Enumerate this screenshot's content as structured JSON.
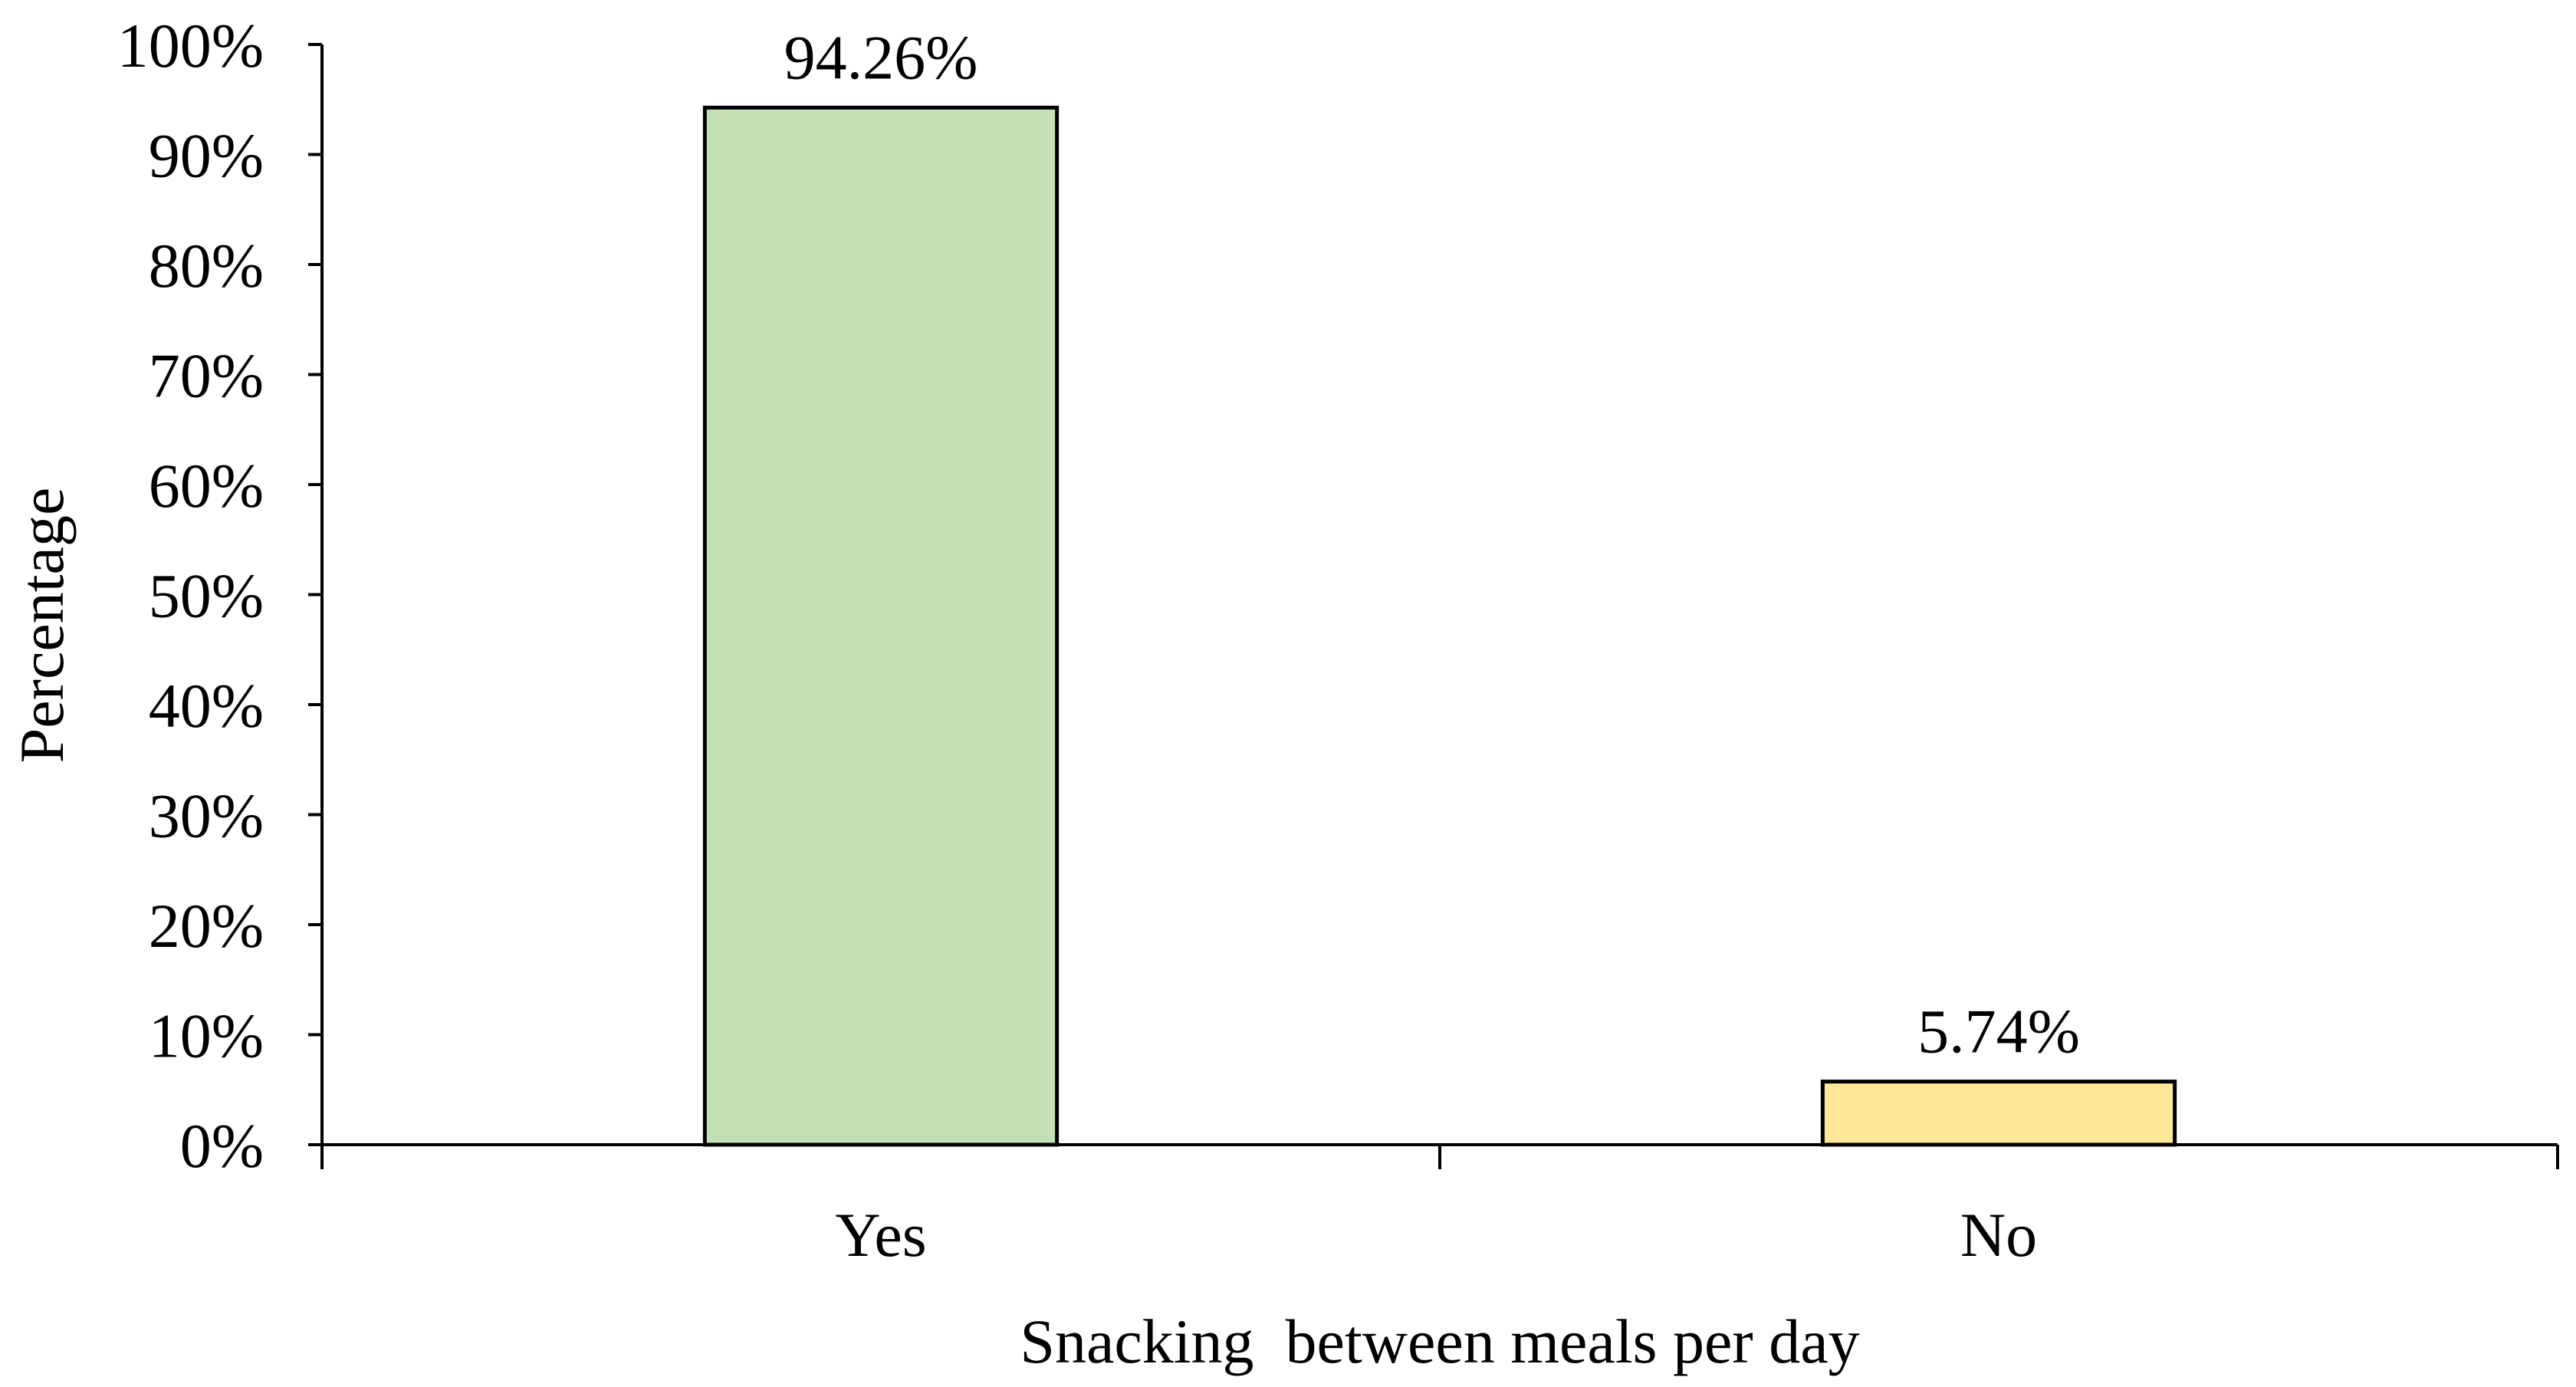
{
  "chart_data": {
    "type": "bar",
    "title": "",
    "xlabel": "Snacking  between meals per day",
    "ylabel": "Percentage",
    "categories": [
      "Yes",
      "No"
    ],
    "values": [
      94.26,
      5.74
    ],
    "data_labels": [
      "94.26%",
      "5.74%"
    ],
    "bar_colors": [
      "#c5e0b4",
      "#ffe699"
    ],
    "bar_outline_color": "#000000",
    "ylim": [
      0,
      100
    ],
    "yticks": [
      0,
      10,
      20,
      30,
      40,
      50,
      60,
      70,
      80,
      90,
      100
    ],
    "ytick_labels": [
      "0%",
      "10%",
      "20%",
      "30%",
      "40%",
      "50%",
      "60%",
      "70%",
      "80%",
      "90%",
      "100%"
    ],
    "grid": false,
    "legend": "none"
  }
}
